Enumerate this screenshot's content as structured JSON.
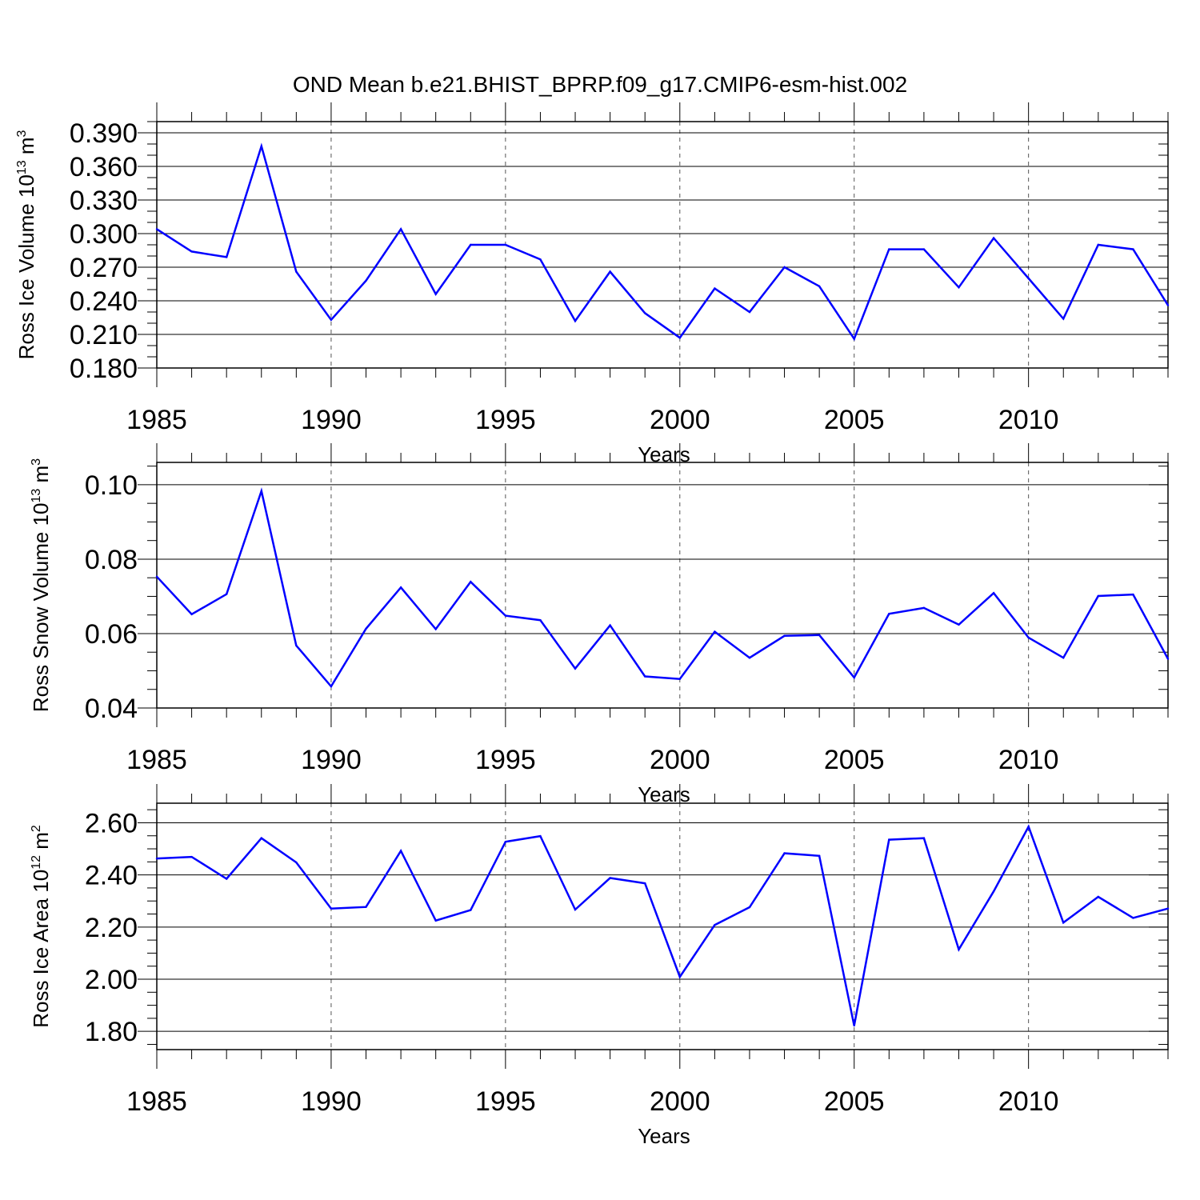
{
  "title": "OND Mean b.e21.BHIST_BPRP.f09_g17.CMIP6-esm-hist.002",
  "colors": {
    "line": "#0000ff",
    "axis": "#000000",
    "grid": "#555555"
  },
  "chart_data": [
    {
      "type": "line",
      "ylabel": "Ross Ice Volume 10",
      "ylabel_exp": "13",
      "ylabel_unit": " m",
      "ylabel_unit_exp": "3",
      "xlabel": "Years",
      "xlim": [
        1985,
        2014
      ],
      "ylim": [
        0.18,
        0.4
      ],
      "yticks": [
        0.18,
        0.21,
        0.24,
        0.27,
        0.3,
        0.33,
        0.36,
        0.39
      ],
      "yticklabels": [
        "0.180",
        "0.210",
        "0.240",
        "0.270",
        "0.300",
        "0.330",
        "0.360",
        "0.390"
      ],
      "yminor": 0.01,
      "xticks": [
        1985,
        1990,
        1995,
        2000,
        2005,
        2010
      ],
      "xticklabels": [
        "1985",
        "1990",
        "1995",
        "2000",
        "2005",
        "2010"
      ],
      "grid_x": true,
      "x": [
        1985,
        1986,
        1987,
        1988,
        1989,
        1990,
        1991,
        1992,
        1993,
        1994,
        1995,
        1996,
        1997,
        1998,
        1999,
        2000,
        2001,
        2002,
        2003,
        2004,
        2005,
        2006,
        2007,
        2008,
        2009,
        2010,
        2011,
        2012,
        2013,
        2014
      ],
      "series": [
        {
          "name": "Ross Ice Volume",
          "values": [
            0.304,
            0.284,
            0.279,
            0.378,
            0.266,
            0.223,
            0.258,
            0.304,
            0.246,
            0.29,
            0.29,
            0.277,
            0.222,
            0.266,
            0.229,
            0.207,
            0.251,
            0.23,
            0.27,
            0.253,
            0.206,
            0.286,
            0.286,
            0.252,
            0.296,
            0.26,
            0.224,
            0.29,
            0.286,
            0.236
          ]
        }
      ]
    },
    {
      "type": "line",
      "ylabel": "Ross Snow Volume 10",
      "ylabel_exp": "13",
      "ylabel_unit": " m",
      "ylabel_unit_exp": "3",
      "xlabel": "Years",
      "xlim": [
        1985,
        2014
      ],
      "ylim": [
        0.04,
        0.106
      ],
      "yticks": [
        0.04,
        0.06,
        0.08,
        0.1
      ],
      "yticklabels": [
        "0.04",
        "0.06",
        "0.08",
        "0.10"
      ],
      "yminor": 0.005,
      "xticks": [
        1985,
        1990,
        1995,
        2000,
        2005,
        2010
      ],
      "xticklabels": [
        "1985",
        "1990",
        "1995",
        "2000",
        "2005",
        "2010"
      ],
      "grid_x": true,
      "x": [
        1985,
        1986,
        1987,
        1988,
        1989,
        1990,
        1991,
        1992,
        1993,
        1994,
        1995,
        1996,
        1997,
        1998,
        1999,
        2000,
        2001,
        2002,
        2003,
        2004,
        2005,
        2006,
        2007,
        2008,
        2009,
        2010,
        2011,
        2012,
        2013,
        2014
      ],
      "series": [
        {
          "name": "Ross Snow Volume",
          "values": [
            0.0753,
            0.0652,
            0.0706,
            0.0983,
            0.0568,
            0.0458,
            0.0613,
            0.0724,
            0.0612,
            0.0739,
            0.0648,
            0.0636,
            0.0506,
            0.0622,
            0.0485,
            0.0478,
            0.0605,
            0.0535,
            0.0594,
            0.0596,
            0.0482,
            0.0653,
            0.0669,
            0.0624,
            0.0709,
            0.0589,
            0.0535,
            0.0701,
            0.0705,
            0.0532
          ]
        }
      ]
    },
    {
      "type": "line",
      "ylabel": "Ross Ice Area 10",
      "ylabel_exp": "12",
      "ylabel_unit": " m",
      "ylabel_unit_exp": "2",
      "xlabel": "Years",
      "xlim": [
        1985,
        2014
      ],
      "ylim": [
        1.73,
        2.675
      ],
      "yticks": [
        1.8,
        2.0,
        2.2,
        2.4,
        2.6
      ],
      "yticklabels": [
        "1.80",
        "2.00",
        "2.20",
        "2.40",
        "2.60"
      ],
      "yminor": 0.05,
      "xticks": [
        1985,
        1990,
        1995,
        2000,
        2005,
        2010
      ],
      "xticklabels": [
        "1985",
        "1990",
        "1995",
        "2000",
        "2005",
        "2010"
      ],
      "grid_x": true,
      "x": [
        1985,
        1986,
        1987,
        1988,
        1989,
        1990,
        1991,
        1992,
        1993,
        1994,
        1995,
        1996,
        1997,
        1998,
        1999,
        2000,
        2001,
        2002,
        2003,
        2004,
        2005,
        2006,
        2007,
        2008,
        2009,
        2010,
        2011,
        2012,
        2013,
        2014
      ],
      "series": [
        {
          "name": "Ross Ice Area",
          "values": [
            2.463,
            2.469,
            2.385,
            2.541,
            2.448,
            2.271,
            2.277,
            2.492,
            2.225,
            2.265,
            2.527,
            2.549,
            2.267,
            2.388,
            2.368,
            2.009,
            2.208,
            2.276,
            2.483,
            2.473,
            1.822,
            2.535,
            2.541,
            2.114,
            2.337,
            2.585,
            2.217,
            2.316,
            2.235,
            2.271
          ]
        }
      ]
    }
  ]
}
